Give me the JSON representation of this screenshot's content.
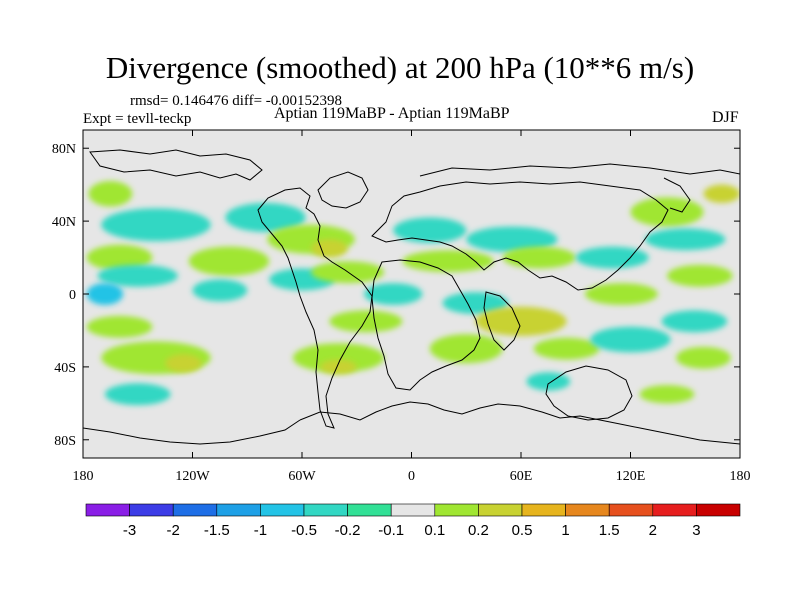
{
  "title": "Divergence (smoothed) at 200 hPa (10**6 m/s)",
  "stats": "rmsd= 0.146476 diff= -0.00152398",
  "expt": "Expt = tevll-teckp",
  "subtitle": "Aptian   119MaBP - Aptian   119MaBP",
  "season": "DJF",
  "chart_data": {
    "type": "heatmap",
    "title": "Divergence (smoothed) at 200 hPa (10**6 m/s)",
    "x_ticks": [
      "180",
      "120W",
      "60W",
      "0",
      "60E",
      "120E",
      "180"
    ],
    "x_tick_values": [
      -180,
      -120,
      -60,
      0,
      60,
      120,
      180
    ],
    "y_ticks": [
      "80N",
      "40N",
      "0",
      "40S",
      "80S"
    ],
    "y_tick_values": [
      80,
      40,
      0,
      -40,
      -80
    ],
    "xlim": [
      -180,
      180
    ],
    "ylim": [
      -90,
      90
    ],
    "colorbar": {
      "labels": [
        "-3",
        "-2",
        "-1.5",
        "-1",
        "-0.5",
        "-0.2",
        "-0.1",
        "0.1",
        "0.2",
        "0.5",
        "1",
        "1.5",
        "2",
        "3"
      ],
      "colors": [
        "#8a1ee6",
        "#3c3ce6",
        "#1e6ee6",
        "#1ea0e6",
        "#23c3e6",
        "#32d7c3",
        "#32e096",
        "#e6e6e6",
        "#a0e632",
        "#c8d232",
        "#e6b41e",
        "#e6871e",
        "#e6501e",
        "#e61e1e",
        "#c80000"
      ]
    },
    "regions": [
      {
        "lon": -165,
        "lat": 55,
        "rlon": 12,
        "rlat": 7,
        "value": 0.2
      },
      {
        "lon": -140,
        "lat": 38,
        "rlon": 30,
        "rlat": 9,
        "value": -0.2
      },
      {
        "lon": -160,
        "lat": 20,
        "rlon": 18,
        "rlat": 7,
        "value": 0.2
      },
      {
        "lon": -150,
        "lat": 10,
        "rlon": 22,
        "rlat": 6,
        "value": -0.2
      },
      {
        "lon": -168,
        "lat": 0,
        "rlon": 10,
        "rlat": 6,
        "value": -0.5
      },
      {
        "lon": -160,
        "lat": -18,
        "rlon": 18,
        "rlat": 6,
        "value": 0.2
      },
      {
        "lon": -140,
        "lat": -35,
        "rlon": 30,
        "rlat": 9,
        "value": 0.2
      },
      {
        "lon": -125,
        "lat": -38,
        "rlon": 10,
        "rlat": 5,
        "value": 0.5
      },
      {
        "lon": -150,
        "lat": -55,
        "rlon": 18,
        "rlat": 6,
        "value": -0.2
      },
      {
        "lon": -100,
        "lat": 18,
        "rlon": 22,
        "rlat": 8,
        "value": 0.2
      },
      {
        "lon": -105,
        "lat": 2,
        "rlon": 15,
        "rlat": 6,
        "value": -0.2
      },
      {
        "lon": -80,
        "lat": 42,
        "rlon": 22,
        "rlat": 8,
        "value": -0.2
      },
      {
        "lon": -55,
        "lat": 30,
        "rlon": 24,
        "rlat": 8,
        "value": 0.2
      },
      {
        "lon": -45,
        "lat": 25,
        "rlon": 10,
        "rlat": 5,
        "value": 0.5
      },
      {
        "lon": -60,
        "lat": 8,
        "rlon": 18,
        "rlat": 6,
        "value": -0.2
      },
      {
        "lon": -35,
        "lat": 12,
        "rlon": 20,
        "rlat": 6,
        "value": 0.2
      },
      {
        "lon": -10,
        "lat": 0,
        "rlon": 16,
        "rlat": 6,
        "value": -0.2
      },
      {
        "lon": -25,
        "lat": -15,
        "rlon": 20,
        "rlat": 6,
        "value": 0.2
      },
      {
        "lon": -40,
        "lat": -35,
        "rlon": 25,
        "rlat": 8,
        "value": 0.2
      },
      {
        "lon": -40,
        "lat": -40,
        "rlon": 10,
        "rlat": 4,
        "value": 0.5
      },
      {
        "lon": 10,
        "lat": 35,
        "rlon": 20,
        "rlat": 7,
        "value": -0.2
      },
      {
        "lon": 20,
        "lat": 18,
        "rlon": 25,
        "rlat": 6,
        "value": 0.2
      },
      {
        "lon": 35,
        "lat": -5,
        "rlon": 18,
        "rlat": 6,
        "value": -0.2
      },
      {
        "lon": 30,
        "lat": -30,
        "rlon": 20,
        "rlat": 8,
        "value": 0.2
      },
      {
        "lon": 55,
        "lat": 30,
        "rlon": 25,
        "rlat": 7,
        "value": -0.2
      },
      {
        "lon": 70,
        "lat": 20,
        "rlon": 20,
        "rlat": 6,
        "value": 0.2
      },
      {
        "lon": 60,
        "lat": -15,
        "rlon": 25,
        "rlat": 8,
        "value": 0.5
      },
      {
        "lon": 85,
        "lat": -30,
        "rlon": 18,
        "rlat": 6,
        "value": 0.2
      },
      {
        "lon": 75,
        "lat": -48,
        "rlon": 12,
        "rlat": 5,
        "value": -0.2
      },
      {
        "lon": 110,
        "lat": 20,
        "rlon": 20,
        "rlat": 6,
        "value": -0.2
      },
      {
        "lon": 115,
        "lat": 0,
        "rlon": 20,
        "rlat": 6,
        "value": 0.2
      },
      {
        "lon": 120,
        "lat": -25,
        "rlon": 22,
        "rlat": 7,
        "value": -0.2
      },
      {
        "lon": 140,
        "lat": 45,
        "rlon": 20,
        "rlat": 8,
        "value": 0.2
      },
      {
        "lon": 150,
        "lat": 30,
        "rlon": 22,
        "rlat": 6,
        "value": -0.2
      },
      {
        "lon": 158,
        "lat": 10,
        "rlon": 18,
        "rlat": 6,
        "value": 0.2
      },
      {
        "lon": 155,
        "lat": -15,
        "rlon": 18,
        "rlat": 6,
        "value": -0.2
      },
      {
        "lon": 160,
        "lat": -35,
        "rlon": 15,
        "rlat": 6,
        "value": 0.2
      },
      {
        "lon": 170,
        "lat": 55,
        "rlon": 10,
        "rlat": 5,
        "value": 0.5
      },
      {
        "lon": 140,
        "lat": -55,
        "rlon": 15,
        "rlat": 5,
        "value": 0.2
      }
    ]
  }
}
